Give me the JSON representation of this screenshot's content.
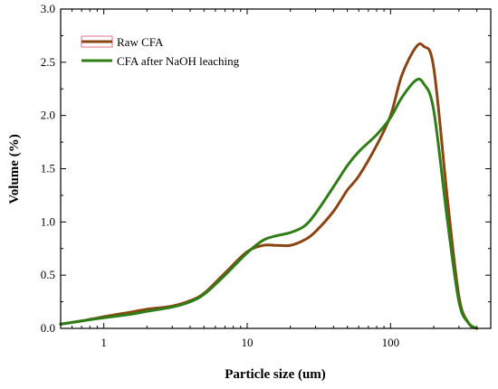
{
  "chart_data": {
    "type": "line",
    "title": "",
    "xlabel": "Particle size (um)",
    "ylabel": "Volume (%)",
    "xscale": "log",
    "xlim": [
      0.5,
      500
    ],
    "ylim": [
      0,
      3.0
    ],
    "xticks": [
      1,
      10,
      100
    ],
    "yticks": [
      0.0,
      0.5,
      1.0,
      1.5,
      2.0,
      2.5,
      3.0
    ],
    "ytick_labels": [
      "0.0",
      "0.5",
      "1.0",
      "1.5",
      "2.0",
      "2.5",
      "3.0"
    ],
    "grid": false,
    "legend_position": "top-left",
    "series": [
      {
        "name": "Raw CFA",
        "color": "#8B4513",
        "x": [
          0.5,
          0.7,
          1,
          1.5,
          2,
          3,
          4,
          5,
          7,
          10,
          13,
          16,
          20,
          25,
          30,
          40,
          50,
          60,
          80,
          100,
          120,
          150,
          170,
          200,
          250,
          300,
          350,
          400
        ],
        "y": [
          0.04,
          0.07,
          0.11,
          0.15,
          0.18,
          0.21,
          0.26,
          0.33,
          0.52,
          0.72,
          0.78,
          0.78,
          0.78,
          0.83,
          0.91,
          1.1,
          1.3,
          1.43,
          1.72,
          2.0,
          2.38,
          2.64,
          2.65,
          2.45,
          1.2,
          0.3,
          0.05,
          0.0
        ]
      },
      {
        "name": "CFA after NaOH leaching",
        "color": "#2E7D16",
        "x": [
          0.5,
          0.7,
          1,
          1.5,
          2,
          3,
          4,
          5,
          7,
          10,
          13,
          16,
          20,
          25,
          30,
          40,
          50,
          60,
          80,
          100,
          120,
          150,
          170,
          200,
          250,
          300,
          350,
          400
        ],
        "y": [
          0.04,
          0.07,
          0.1,
          0.13,
          0.16,
          0.2,
          0.25,
          0.32,
          0.5,
          0.71,
          0.83,
          0.87,
          0.9,
          0.96,
          1.08,
          1.33,
          1.53,
          1.66,
          1.82,
          1.98,
          2.17,
          2.33,
          2.3,
          2.05,
          1.0,
          0.25,
          0.05,
          0.0
        ]
      }
    ]
  }
}
